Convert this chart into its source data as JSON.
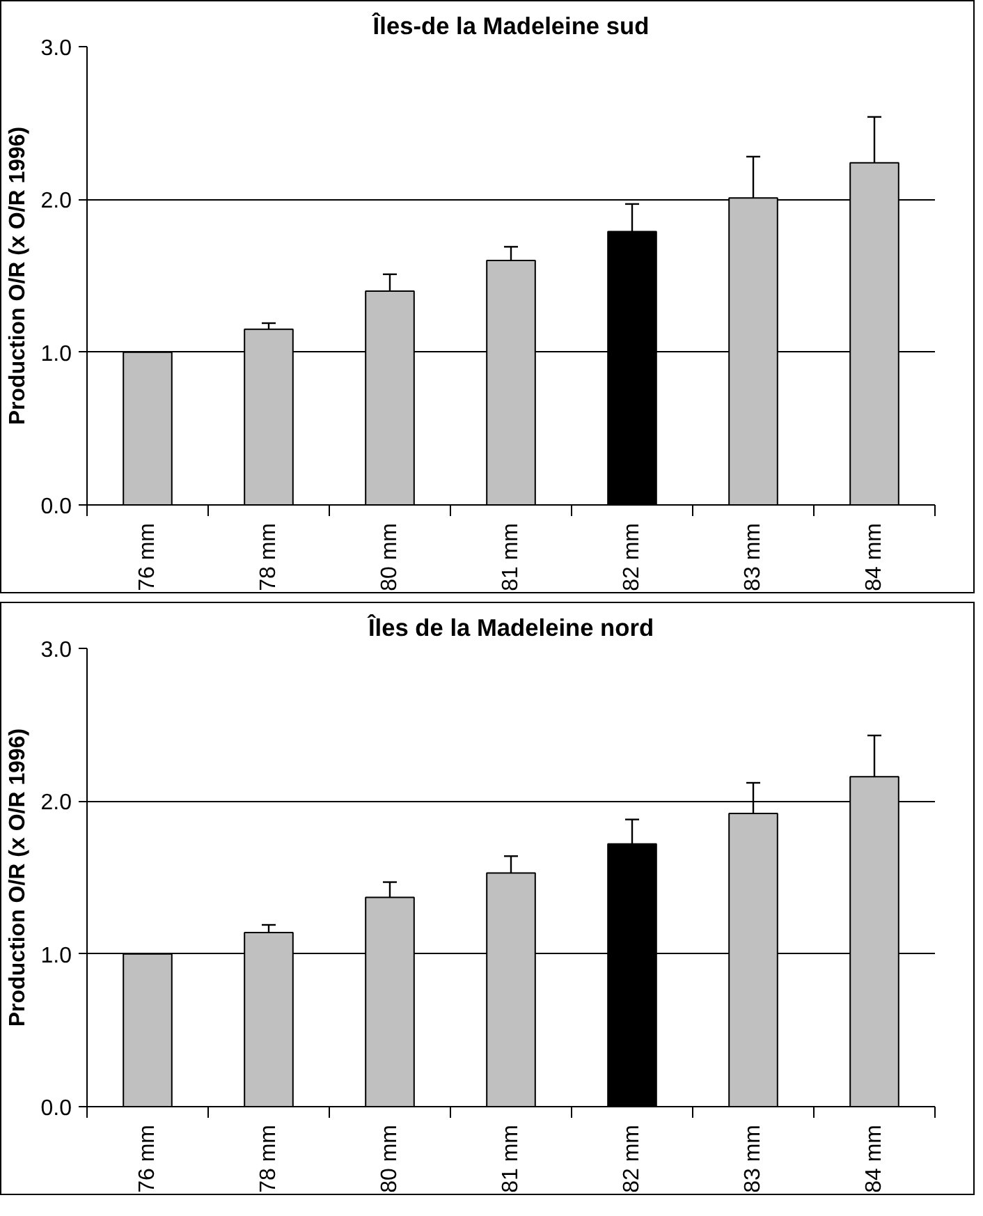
{
  "chart_data": [
    {
      "type": "bar",
      "title": "Îles-de la Madeleine sud",
      "ylabel": "Production O/R (x O/R 1996)",
      "categories": [
        "76 mm",
        "78 mm",
        "80 mm",
        "81 mm",
        "82 mm",
        "83 mm",
        "84 mm"
      ],
      "values": [
        1.0,
        1.15,
        1.4,
        1.6,
        1.79,
        2.01,
        2.24
      ],
      "colors": [
        "#c0c0c0",
        "#c0c0c0",
        "#c0c0c0",
        "#c0c0c0",
        "#000000",
        "#c0c0c0",
        "#c0c0c0"
      ],
      "errors": [
        null,
        [
          1.15,
          1.19
        ],
        [
          1.4,
          1.51
        ],
        [
          1.6,
          1.69
        ],
        [
          1.79,
          1.97
        ],
        [
          2.01,
          2.28
        ],
        [
          2.24,
          2.54
        ]
      ],
      "ylim": [
        0,
        3
      ],
      "yticks": [
        {
          "value": 0,
          "label": "0.0"
        },
        {
          "value": 1,
          "label": "1.0"
        },
        {
          "value": 2,
          "label": "2.0"
        },
        {
          "value": 3,
          "label": "3.0"
        }
      ],
      "grid": "y"
    },
    {
      "type": "bar",
      "title": "Îles de la Madeleine nord",
      "ylabel": "Production O/R (x O/R 1996)",
      "categories": [
        "76 mm",
        "78 mm",
        "80 mm",
        "81 mm",
        "82 mm",
        "83 mm",
        "84 mm"
      ],
      "values": [
        1.0,
        1.14,
        1.37,
        1.53,
        1.72,
        1.92,
        2.16
      ],
      "colors": [
        "#c0c0c0",
        "#c0c0c0",
        "#c0c0c0",
        "#c0c0c0",
        "#000000",
        "#c0c0c0",
        "#c0c0c0"
      ],
      "errors": [
        null,
        [
          1.14,
          1.19
        ],
        [
          1.37,
          1.47
        ],
        [
          1.53,
          1.64
        ],
        [
          1.72,
          1.88
        ],
        [
          1.92,
          2.12
        ],
        [
          2.16,
          2.43
        ]
      ],
      "ylim": [
        0,
        3
      ],
      "yticks": [
        {
          "value": 0,
          "label": "0.0"
        },
        {
          "value": 1,
          "label": "1.0"
        },
        {
          "value": 2,
          "label": "2.0"
        },
        {
          "value": 3,
          "label": "3.0"
        }
      ],
      "grid": "y"
    }
  ]
}
